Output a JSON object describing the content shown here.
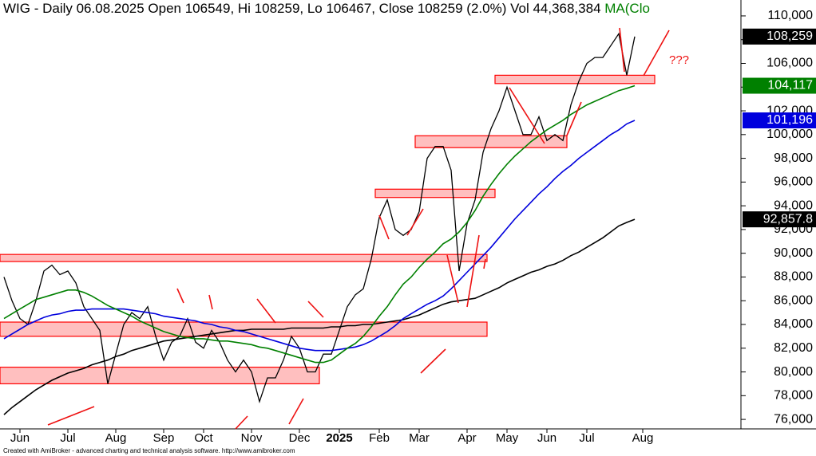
{
  "chart_data": {
    "type": "line",
    "title": "WIG - Daily 06.08.2025 Open 106549, Hi 108259, Lo 106467, Close 108259 (2.0%) Vol 44,368,384",
    "ma_label": "MA(Clo",
    "footer": "Created with AmiBroker - advanced charting and technical analysis software. http://www.amibroker.com",
    "annotation": "???",
    "categories": [
      null,
      null,
      "Jun",
      null,
      null,
      null,
      null,
      null,
      "Jul",
      null,
      null,
      null,
      null,
      null,
      "Aug",
      null,
      null,
      null,
      null,
      null,
      "Sep",
      null,
      null,
      null,
      null,
      "Oct",
      null,
      null,
      null,
      null,
      null,
      "Nov",
      null,
      null,
      null,
      null,
      null,
      "Dec",
      null,
      null,
      null,
      null,
      "2025",
      null,
      null,
      null,
      null,
      "Feb",
      null,
      null,
      null,
      null,
      "Mar",
      null,
      null,
      null,
      null,
      null,
      "Apr",
      null,
      null,
      null,
      null,
      "May",
      null,
      null,
      null,
      null,
      "Jun",
      null,
      null,
      null,
      null,
      "Jul",
      null,
      null,
      null,
      null,
      null,
      null,
      "Aug",
      null
    ],
    "series": [
      {
        "name": "Close",
        "color": "#000000",
        "badge": {
          "value": 108259,
          "label": "108,259"
        },
        "values": [
          88000,
          86000,
          84500,
          84000,
          86000,
          88500,
          89000,
          88200,
          88500,
          87500,
          85500,
          84500,
          83500,
          79000,
          81500,
          84000,
          85000,
          84500,
          85500,
          83000,
          81000,
          82500,
          83000,
          84500,
          82500,
          82000,
          83500,
          82500,
          81000,
          80000,
          81000,
          80000,
          77500,
          79500,
          79500,
          81000,
          83000,
          82000,
          80000,
          80000,
          81500,
          81500,
          83500,
          85500,
          86500,
          87000,
          89500,
          93000,
          94500,
          92000,
          91500,
          92000,
          93500,
          98000,
          99000,
          99000,
          97000,
          88500,
          92500,
          94500,
          98500,
          100500,
          102000,
          104000,
          102000,
          100000,
          100000,
          101500,
          99500,
          100000,
          99500,
          102500,
          104500,
          106000,
          106500,
          106500,
          107500,
          108500,
          105000,
          108259,
          null,
          null
        ]
      },
      {
        "name": "MA long",
        "color": "#000000",
        "badge": {
          "value": 92857.8,
          "label": "92,857.8"
        },
        "values": [
          76400,
          77000,
          77500,
          78000,
          78500,
          78900,
          79300,
          79600,
          79900,
          80100,
          80300,
          80600,
          80800,
          81000,
          81300,
          81500,
          81800,
          82000,
          82200,
          82400,
          82600,
          82700,
          82800,
          82900,
          83000,
          83100,
          83200,
          83300,
          83400,
          83500,
          83500,
          83600,
          83600,
          83600,
          83600,
          83600,
          83700,
          83700,
          83700,
          83700,
          83700,
          83800,
          83800,
          83900,
          83900,
          84000,
          84000,
          84100,
          84200,
          84300,
          84400,
          84600,
          84800,
          85100,
          85400,
          85700,
          85900,
          86000,
          86100,
          86200,
          86500,
          86800,
          87100,
          87500,
          87800,
          88100,
          88400,
          88600,
          88900,
          89100,
          89400,
          89800,
          90100,
          90500,
          90900,
          91300,
          91800,
          92300,
          92600,
          92857.8,
          null,
          null
        ]
      },
      {
        "name": "MA mid",
        "color": "#0000dd",
        "badge": {
          "value": 101196,
          "label": "101,196"
        },
        "values": [
          82800,
          83200,
          83600,
          84000,
          84300,
          84600,
          84800,
          84900,
          85100,
          85200,
          85200,
          85300,
          85300,
          85300,
          85300,
          85300,
          85200,
          85100,
          85000,
          84900,
          84700,
          84600,
          84500,
          84400,
          84300,
          84100,
          84000,
          83800,
          83700,
          83500,
          83400,
          83200,
          83000,
          82800,
          82600,
          82400,
          82200,
          82000,
          81900,
          81800,
          81800,
          81800,
          81900,
          82000,
          82100,
          82300,
          82600,
          83000,
          83400,
          83900,
          84500,
          84900,
          85300,
          85700,
          86000,
          86400,
          87000,
          87700,
          88400,
          89100,
          89800,
          90500,
          91300,
          92100,
          92900,
          93600,
          94300,
          95000,
          95600,
          96300,
          96900,
          97400,
          98000,
          98500,
          99000,
          99500,
          100000,
          100400,
          100900,
          101196,
          null,
          null
        ]
      },
      {
        "name": "MA short",
        "color": "#008000",
        "badge": {
          "value": 104117,
          "label": "104,117"
        },
        "values": [
          84500,
          84900,
          85300,
          85700,
          86100,
          86300,
          86500,
          86700,
          86900,
          86900,
          86700,
          86400,
          86000,
          85600,
          85300,
          85000,
          84700,
          84300,
          84000,
          83700,
          83400,
          83200,
          83000,
          82900,
          82800,
          82800,
          82700,
          82600,
          82600,
          82500,
          82400,
          82300,
          82100,
          82000,
          81800,
          81600,
          81400,
          81200,
          81000,
          80800,
          80800,
          81000,
          81500,
          82000,
          82400,
          83000,
          83800,
          84700,
          85500,
          86500,
          87400,
          88000,
          88800,
          89500,
          90100,
          90800,
          91200,
          91800,
          92600,
          93600,
          94800,
          95800,
          96700,
          97500,
          98200,
          98800,
          99400,
          99900,
          100400,
          100800,
          101200,
          101700,
          102100,
          102500,
          102800,
          103100,
          103400,
          103700,
          103900,
          104117,
          null,
          null
        ]
      }
    ],
    "zones": [
      {
        "low": 104300,
        "high": 105000,
        "start": 62,
        "end": 82
      },
      {
        "low": 98900,
        "high": 99900,
        "start": 52,
        "end": 71
      },
      {
        "low": 94700,
        "high": 95400,
        "start": 47,
        "end": 62
      },
      {
        "low": 89300,
        "high": 89900,
        "start": 0,
        "end": 61
      },
      {
        "low": 83000,
        "high": 84200,
        "start": 0,
        "end": 61
      },
      {
        "low": 79000,
        "high": 80400,
        "start": 0,
        "end": 40
      }
    ],
    "zone_color": "#ff0000",
    "ylim": [
      75200,
      111340
    ],
    "yticks": [
      {
        "value": 76000,
        "label": "76,000"
      },
      {
        "value": 78000,
        "label": "78,000"
      },
      {
        "value": 80000,
        "label": "80,000"
      },
      {
        "value": 82000,
        "label": "82,000"
      },
      {
        "value": 84000,
        "label": "84,000"
      },
      {
        "value": 86000,
        "label": "86,000"
      },
      {
        "value": 88000,
        "label": "88,000"
      },
      {
        "value": 90000,
        "label": "90,000"
      },
      {
        "value": 92000,
        "label": "92,000"
      },
      {
        "value": 94000,
        "label": "94,000"
      },
      {
        "value": 96000,
        "label": "96,000"
      },
      {
        "value": 98000,
        "label": "98,000"
      },
      {
        "value": 100000,
        "label": "100,000"
      },
      {
        "value": 102000,
        "label": "102,000"
      },
      {
        "value": 104000,
        "label": "104,000"
      },
      {
        "value": 106000,
        "label": "106,000"
      },
      {
        "value": 108000,
        "label": "108,000"
      },
      {
        "value": 110000,
        "label": "110,000"
      }
    ]
  }
}
